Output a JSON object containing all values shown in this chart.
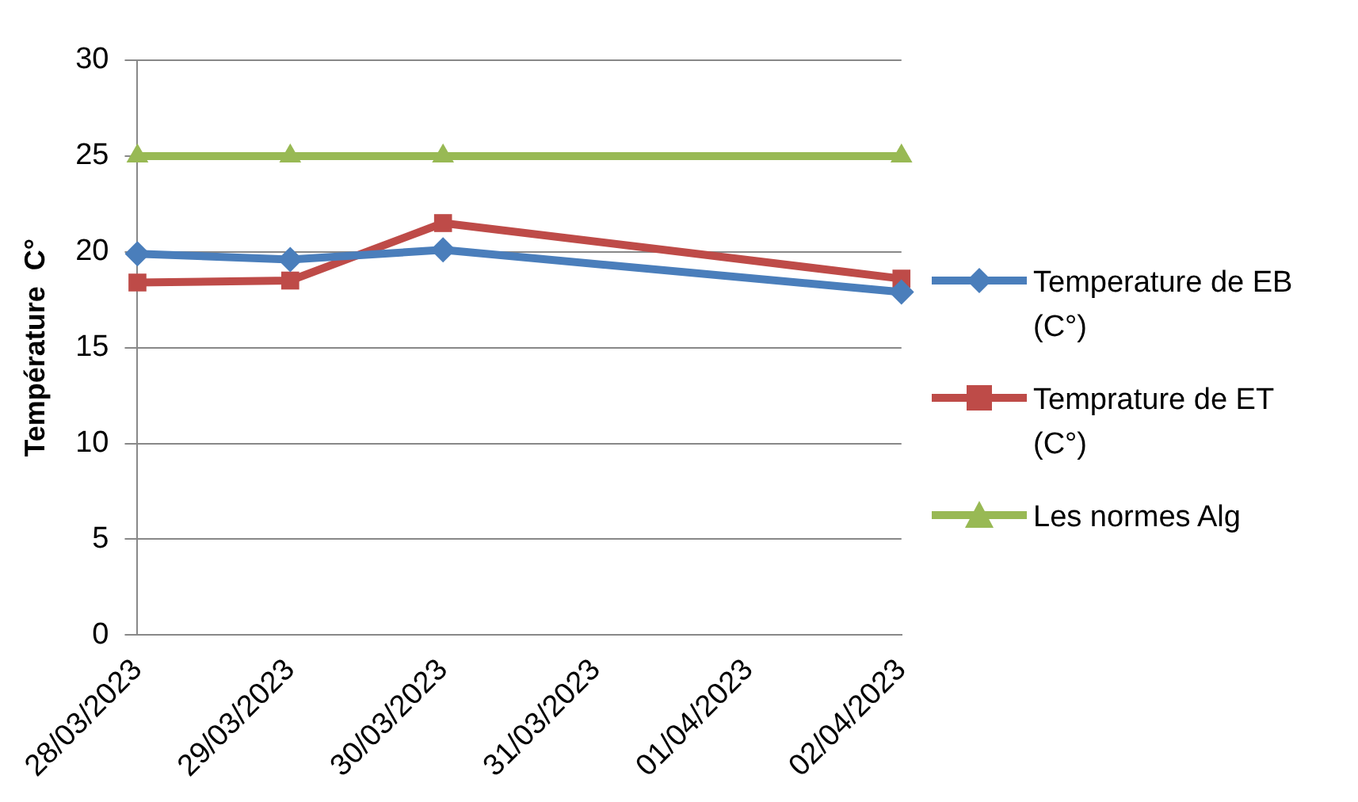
{
  "chart_data": {
    "type": "line",
    "ylabel": "Température  C°",
    "categories": [
      "28/03/2023",
      "29/03/2023",
      "30/03/2023",
      "31/03/2023",
      "01/04/2023",
      "02/04/2023"
    ],
    "series": [
      {
        "name": "Temperature de EB (C°)",
        "color": "#4a7ebb",
        "marker": "diamond",
        "values": [
          19.9,
          19.6,
          20.1,
          null,
          null,
          17.9
        ]
      },
      {
        "name": "Temprature de ET (C°)",
        "color": "#be4b48",
        "marker": "square",
        "values": [
          18.4,
          18.5,
          21.5,
          null,
          null,
          18.6
        ]
      },
      {
        "name": "Les normes Alg",
        "color": "#98b954",
        "marker": "triangle",
        "values": [
          25,
          25,
          25,
          null,
          null,
          25
        ]
      }
    ],
    "ylim": [
      0,
      30
    ],
    "yticks": [
      0,
      5,
      10,
      15,
      20,
      25,
      30
    ],
    "grid": "y",
    "legend": "right"
  }
}
